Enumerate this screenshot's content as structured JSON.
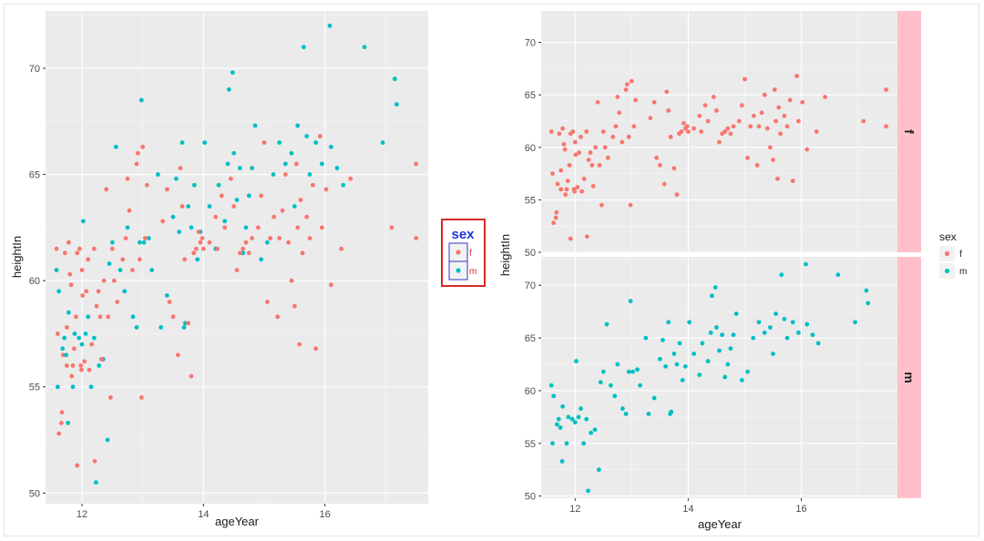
{
  "colors": {
    "panel_bg": "#ebebeb",
    "grid": "#ffffff",
    "f": "#f8766d",
    "m": "#00bfc4",
    "strip_bg": "#ffc0cb",
    "legend_border": "#d42a2a",
    "legend_title": "#1f35e0",
    "legend_key_border": "#3535c8",
    "legend_label": "#d42a2a"
  },
  "chart_data": [
    {
      "type": "scatter",
      "xlabel": "ageYear",
      "ylabel": "heightIn",
      "xlim": [
        11.4,
        17.7
      ],
      "ylim": [
        49.5,
        72.7
      ],
      "xticks": [
        "12",
        "14",
        "16"
      ],
      "yticks": [
        "50",
        "55",
        "60",
        "65",
        "70"
      ],
      "grid": true,
      "legend": {
        "title": "sex",
        "placement": "right",
        "entries": [
          "f",
          "m"
        ]
      },
      "series": [
        {
          "name": "f",
          "points": [
            [
              11.58,
              61.5
            ],
            [
              11.6,
              57.5
            ],
            [
              11.62,
              52.8
            ],
            [
              11.66,
              53.3
            ],
            [
              11.67,
              53.8
            ],
            [
              11.69,
              56.5
            ],
            [
              11.72,
              61.3
            ],
            [
              11.75,
              57.8
            ],
            [
              11.75,
              56.0
            ],
            [
              11.78,
              61.8
            ],
            [
              11.8,
              60.3
            ],
            [
              11.82,
              59.8
            ],
            [
              11.83,
              55.5
            ],
            [
              11.85,
              56.0
            ],
            [
              11.87,
              56.8
            ],
            [
              11.9,
              58.3
            ],
            [
              11.92,
              61.3
            ],
            [
              11.92,
              51.3
            ],
            [
              11.96,
              61.5
            ],
            [
              11.98,
              56.0
            ],
            [
              11.99,
              55.8
            ],
            [
              12.0,
              60.5
            ],
            [
              12.01,
              59.3
            ],
            [
              12.04,
              56.2
            ],
            [
              12.07,
              59.5
            ],
            [
              12.1,
              61.0
            ],
            [
              12.12,
              55.8
            ],
            [
              12.16,
              57.0
            ],
            [
              12.2,
              61.5
            ],
            [
              12.21,
              51.5
            ],
            [
              12.24,
              58.8
            ],
            [
              12.27,
              59.5
            ],
            [
              12.3,
              58.3
            ],
            [
              12.32,
              56.3
            ],
            [
              12.36,
              60.0
            ],
            [
              12.4,
              64.3
            ],
            [
              12.43,
              58.3
            ],
            [
              12.47,
              54.5
            ],
            [
              12.5,
              61.5
            ],
            [
              12.53,
              60.0
            ],
            [
              12.58,
              59.0
            ],
            [
              12.67,
              61.0
            ],
            [
              12.72,
              62.0
            ],
            [
              12.75,
              64.8
            ],
            [
              12.78,
              63.3
            ],
            [
              12.83,
              60.5
            ],
            [
              12.9,
              65.5
            ],
            [
              12.92,
              66.0
            ],
            [
              12.95,
              61.0
            ],
            [
              12.98,
              54.5
            ],
            [
              13.0,
              66.3
            ],
            [
              13.04,
              62.0
            ],
            [
              13.07,
              64.5
            ],
            [
              13.33,
              62.8
            ],
            [
              13.4,
              64.3
            ],
            [
              13.44,
              59.0
            ],
            [
              13.5,
              58.3
            ],
            [
              13.58,
              56.5
            ],
            [
              13.62,
              65.3
            ],
            [
              13.65,
              63.5
            ],
            [
              13.69,
              61.0
            ],
            [
              13.75,
              58.0
            ],
            [
              13.8,
              55.5
            ],
            [
              13.84,
              61.3
            ],
            [
              13.88,
              61.5
            ],
            [
              13.92,
              62.3
            ],
            [
              13.95,
              61.8
            ],
            [
              13.98,
              62.0
            ],
            [
              14.0,
              61.5
            ],
            [
              14.1,
              61.8
            ],
            [
              14.2,
              63.0
            ],
            [
              14.23,
              61.5
            ],
            [
              14.3,
              64.0
            ],
            [
              14.35,
              62.5
            ],
            [
              14.45,
              64.8
            ],
            [
              14.5,
              63.5
            ],
            [
              14.55,
              60.5
            ],
            [
              14.6,
              61.3
            ],
            [
              14.65,
              61.5
            ],
            [
              14.7,
              61.8
            ],
            [
              14.75,
              61.3
            ],
            [
              14.8,
              62.0
            ],
            [
              14.9,
              62.5
            ],
            [
              14.95,
              64.0
            ],
            [
              15.0,
              66.5
            ],
            [
              15.05,
              59.0
            ],
            [
              15.1,
              62.0
            ],
            [
              15.16,
              63.0
            ],
            [
              15.22,
              58.3
            ],
            [
              15.25,
              62.0
            ],
            [
              15.3,
              63.3
            ],
            [
              15.35,
              65.0
            ],
            [
              15.4,
              61.8
            ],
            [
              15.45,
              60.0
            ],
            [
              15.5,
              58.8
            ],
            [
              15.53,
              65.5
            ],
            [
              15.55,
              62.5
            ],
            [
              15.58,
              57.0
            ],
            [
              15.6,
              63.8
            ],
            [
              15.63,
              61.3
            ],
            [
              15.7,
              63.0
            ],
            [
              15.75,
              62.0
            ],
            [
              15.8,
              64.5
            ],
            [
              15.85,
              56.8
            ],
            [
              15.92,
              66.8
            ],
            [
              15.95,
              62.5
            ],
            [
              16.02,
              64.3
            ],
            [
              16.1,
              59.8
            ],
            [
              16.27,
              61.5
            ],
            [
              16.42,
              64.8
            ],
            [
              17.1,
              62.5
            ],
            [
              17.5,
              65.5
            ],
            [
              17.5,
              62.0
            ]
          ]
        },
        {
          "name": "m",
          "points": [
            [
              11.58,
              60.5
            ],
            [
              11.6,
              55.0
            ],
            [
              11.62,
              59.5
            ],
            [
              11.68,
              56.8
            ],
            [
              11.71,
              57.3
            ],
            [
              11.74,
              56.5
            ],
            [
              11.77,
              53.3
            ],
            [
              11.78,
              58.5
            ],
            [
              11.85,
              55.0
            ],
            [
              11.88,
              57.5
            ],
            [
              11.95,
              57.3
            ],
            [
              12.0,
              57.0
            ],
            [
              12.02,
              62.8
            ],
            [
              12.06,
              57.5
            ],
            [
              12.1,
              58.3
            ],
            [
              12.15,
              55.0
            ],
            [
              12.2,
              57.3
            ],
            [
              12.23,
              50.5
            ],
            [
              12.28,
              56.0
            ],
            [
              12.35,
              56.3
            ],
            [
              12.42,
              52.5
            ],
            [
              12.45,
              60.8
            ],
            [
              12.5,
              61.8
            ],
            [
              12.56,
              66.3
            ],
            [
              12.63,
              60.5
            ],
            [
              12.7,
              59.5
            ],
            [
              12.75,
              62.5
            ],
            [
              12.84,
              58.3
            ],
            [
              12.9,
              57.8
            ],
            [
              12.95,
              61.8
            ],
            [
              12.98,
              68.5
            ],
            [
              13.02,
              61.8
            ],
            [
              13.1,
              62.0
            ],
            [
              13.15,
              60.5
            ],
            [
              13.25,
              65.0
            ],
            [
              13.3,
              57.8
            ],
            [
              13.4,
              59.3
            ],
            [
              13.5,
              63.0
            ],
            [
              13.55,
              64.8
            ],
            [
              13.6,
              62.3
            ],
            [
              13.65,
              66.5
            ],
            [
              13.68,
              57.8
            ],
            [
              13.7,
              58.0
            ],
            [
              13.75,
              63.5
            ],
            [
              13.8,
              62.5
            ],
            [
              13.85,
              64.5
            ],
            [
              13.9,
              61.0
            ],
            [
              13.95,
              62.3
            ],
            [
              14.02,
              66.5
            ],
            [
              14.1,
              63.5
            ],
            [
              14.2,
              61.5
            ],
            [
              14.25,
              64.5
            ],
            [
              14.35,
              62.8
            ],
            [
              14.4,
              65.5
            ],
            [
              14.42,
              69.0
            ],
            [
              14.48,
              69.8
            ],
            [
              14.5,
              66.0
            ],
            [
              14.55,
              63.8
            ],
            [
              14.6,
              65.3
            ],
            [
              14.65,
              61.3
            ],
            [
              14.7,
              62.5
            ],
            [
              14.75,
              64.0
            ],
            [
              14.8,
              65.3
            ],
            [
              14.85,
              67.3
            ],
            [
              14.95,
              61.0
            ],
            [
              15.05,
              61.8
            ],
            [
              15.15,
              65.0
            ],
            [
              15.25,
              66.5
            ],
            [
              15.35,
              65.5
            ],
            [
              15.45,
              66.0
            ],
            [
              15.5,
              63.5
            ],
            [
              15.55,
              67.3
            ],
            [
              15.65,
              71.0
            ],
            [
              15.7,
              66.8
            ],
            [
              15.75,
              65.0
            ],
            [
              15.85,
              66.5
            ],
            [
              15.95,
              65.5
            ],
            [
              16.08,
              72.0
            ],
            [
              16.1,
              66.3
            ],
            [
              16.2,
              65.3
            ],
            [
              16.3,
              64.5
            ],
            [
              16.65,
              71.0
            ],
            [
              16.95,
              66.5
            ],
            [
              17.15,
              69.5
            ],
            [
              17.18,
              68.3
            ]
          ]
        }
      ]
    },
    {
      "type": "scatter",
      "xlabel": "ageYear",
      "ylabel": "heightIn",
      "xlim": [
        11.4,
        17.7
      ],
      "facet_panels": [
        {
          "strip_label": "f",
          "ylim": [
            50,
            73
          ],
          "yticks": [
            "50",
            "55",
            "60",
            "65",
            "70"
          ]
        },
        {
          "strip_label": "m",
          "ylim": [
            49.8,
            72.7
          ],
          "yticks": [
            "50",
            "55",
            "60",
            "65",
            "70"
          ]
        }
      ],
      "xticks": [
        "12",
        "14",
        "16"
      ],
      "grid": true,
      "legend": {
        "title": "sex",
        "placement": "right",
        "entries": [
          "f",
          "m"
        ]
      }
    }
  ]
}
